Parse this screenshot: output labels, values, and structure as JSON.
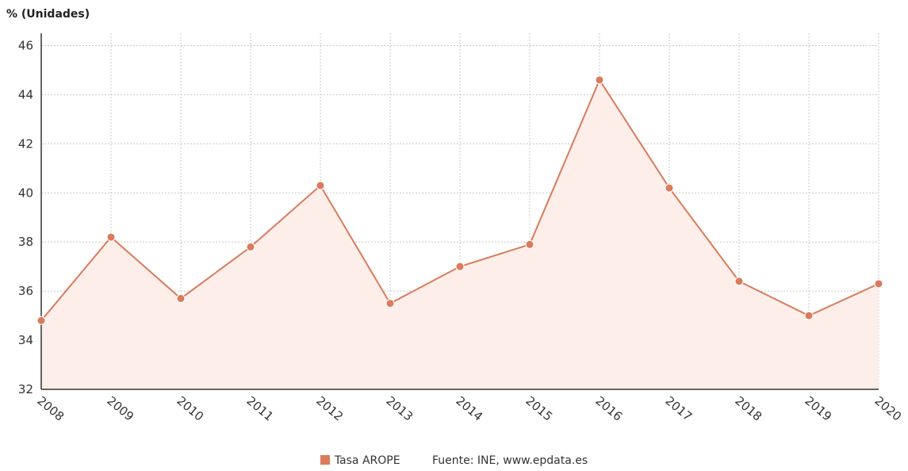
{
  "chart_data": {
    "type": "line",
    "ylabel": "% (Unidades)",
    "x": [
      "2008",
      "2009",
      "2010",
      "2011",
      "2012",
      "2013",
      "2014",
      "2015",
      "2016",
      "2017",
      "2018",
      "2019",
      "2020"
    ],
    "series": [
      {
        "name": "Tasa AROPE",
        "values": [
          34.8,
          38.2,
          35.7,
          37.8,
          40.3,
          35.5,
          37.0,
          37.9,
          44.6,
          40.2,
          36.4,
          35.0,
          36.3
        ]
      }
    ],
    "ylim": [
      32,
      46.5
    ],
    "yticks": [
      32,
      34,
      36,
      38,
      40,
      42,
      44,
      46
    ],
    "grid": true,
    "legend_position": "bottom",
    "source": "Fuente: INE, www.epdata.es",
    "colors": {
      "line": "#d97b5c",
      "fill": "#fdeeea",
      "grid": "#c8c8c8",
      "axis": "#333333"
    }
  }
}
